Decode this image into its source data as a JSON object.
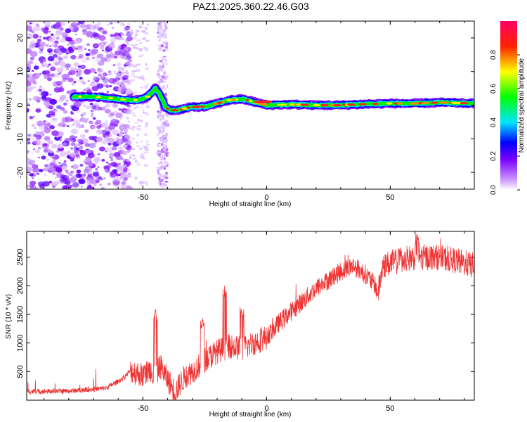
{
  "title": "PAZ1.2025.360.22.46.G03",
  "colorbar": {
    "label": "Normalized spectral amplitude",
    "ticks": [
      "0.0",
      "0.2",
      "0.4",
      "0.6",
      "0.8"
    ]
  },
  "chart_data": [
    {
      "type": "heatmap",
      "name": "spectrogram",
      "xlabel": "Height of straight line (km)",
      "ylabel": "Frequency (Hz)",
      "xlim": [
        -97,
        84
      ],
      "ylim": [
        -25,
        25
      ],
      "xticks": [
        -50,
        0,
        50
      ],
      "yticks": [
        -20,
        -10,
        0,
        10,
        20
      ],
      "ridge_x": [
        -78,
        -70,
        -62,
        -56,
        -52,
        -48,
        -45,
        -43,
        -41,
        -39,
        -36,
        -30,
        -25,
        -20,
        -15,
        -10,
        -5,
        0,
        10,
        20,
        30,
        40,
        50,
        60,
        70,
        84
      ],
      "ridge_freq": [
        2.5,
        2.5,
        2,
        1.5,
        1.5,
        2.5,
        5,
        3,
        -0.5,
        -1.5,
        -1.5,
        -0.5,
        -0.5,
        0.5,
        1.5,
        1.8,
        1,
        0,
        0.2,
        0,
        0,
        0.3,
        0.5,
        0.5,
        0.8,
        0.5
      ]
    },
    {
      "type": "line",
      "name": "snr",
      "xlabel": "Height of straight line (km)",
      "ylabel": "SNR (10 * v/v)",
      "xlim": [
        -97,
        84
      ],
      "ylim": [
        0,
        2950
      ],
      "xticks": [
        -50,
        0,
        50
      ],
      "yticks": [
        500,
        1000,
        1500,
        2000,
        2500
      ],
      "color": "#ee3333",
      "trend_x": [
        -97,
        -80,
        -65,
        -58,
        -55,
        -50,
        -47,
        -45,
        -43,
        -40,
        -37,
        -33,
        -30,
        -25,
        -20,
        -15,
        -10,
        -5,
        0,
        5,
        10,
        15,
        20,
        25,
        30,
        35,
        40,
        44,
        45,
        47,
        50,
        55,
        60,
        65,
        70,
        75,
        84
      ],
      "trend_y": [
        150,
        160,
        210,
        380,
        520,
        430,
        540,
        420,
        600,
        360,
        150,
        420,
        500,
        700,
        850,
        950,
        900,
        1000,
        1100,
        1350,
        1550,
        1750,
        1950,
        2100,
        2250,
        2350,
        2200,
        2000,
        1850,
        2350,
        2400,
        2450,
        2500,
        2500,
        2500,
        2450,
        2350
      ],
      "spikes": [
        {
          "x": -45,
          "y": 1600
        },
        {
          "x": -26,
          "y": 1450
        },
        {
          "x": -17,
          "y": 2000
        },
        {
          "x": -10,
          "y": 1650
        },
        {
          "x": 61,
          "y": 2950
        },
        {
          "x": 54,
          "y": 2700
        }
      ]
    }
  ]
}
